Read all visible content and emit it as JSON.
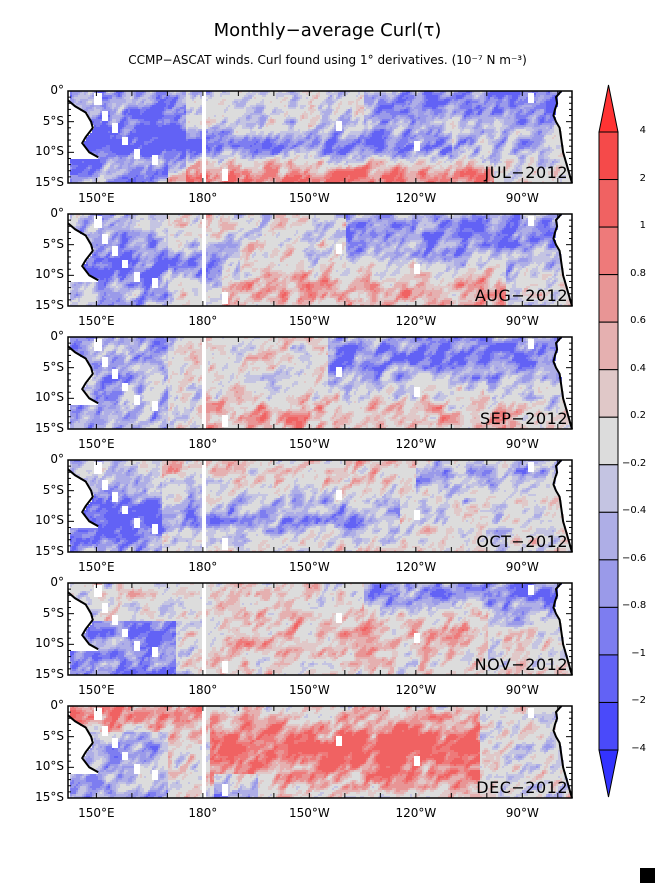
{
  "title": "Monthly−average Curl(τ)",
  "subtitle": "CCMP−ASCAT winds. Curl found using 1° derivatives. (10⁻⁷ N m⁻³)",
  "lat_labels": [
    "0°",
    "5°S",
    "10°S",
    "15°S"
  ],
  "lon_labels": [
    "150°E",
    "180°",
    "150°W",
    "120°W",
    "90°W"
  ],
  "panels": [
    {
      "month": "JUL−2012"
    },
    {
      "month": "AUG−2012"
    },
    {
      "month": "SEP−2012"
    },
    {
      "month": "OCT−2012"
    },
    {
      "month": "NOV−2012"
    },
    {
      "month": "DEC−2012"
    }
  ],
  "colorbar": {
    "labels": [
      "4",
      "2",
      "1",
      "0.8",
      "0.6",
      "0.4",
      "0.2",
      "−0.2",
      "−0.4",
      "−0.6",
      "−0.8",
      "−1",
      "−2",
      "−4"
    ],
    "levels": [
      4,
      2,
      1,
      0.8,
      0.6,
      0.4,
      0.2,
      -0.2,
      -0.4,
      -0.6,
      -0.8,
      -1,
      -2,
      -4
    ],
    "colors": [
      "#ff3333",
      "#f54a4a",
      "#f06262",
      "#ee7a7a",
      "#e89595",
      "#e5b0b0",
      "#e0c8c8",
      "#dcdcdc",
      "#c4c4e2",
      "#aeaee6",
      "#9a9ae9",
      "#7d7df0",
      "#6262f5",
      "#4a4afa",
      "#3333ff"
    ]
  },
  "chart_data": {
    "type": "heatmap",
    "title": "Monthly−average Curl(τ)",
    "units": "10^-7 N m^-3",
    "lon_range": [
      "142E",
      "76W"
    ],
    "lat_range": [
      "0",
      "15S"
    ],
    "months": [
      "JUL−2012",
      "AUG−2012",
      "SEP−2012",
      "OCT−2012",
      "NOV−2012",
      "DEC−2012"
    ]
  }
}
